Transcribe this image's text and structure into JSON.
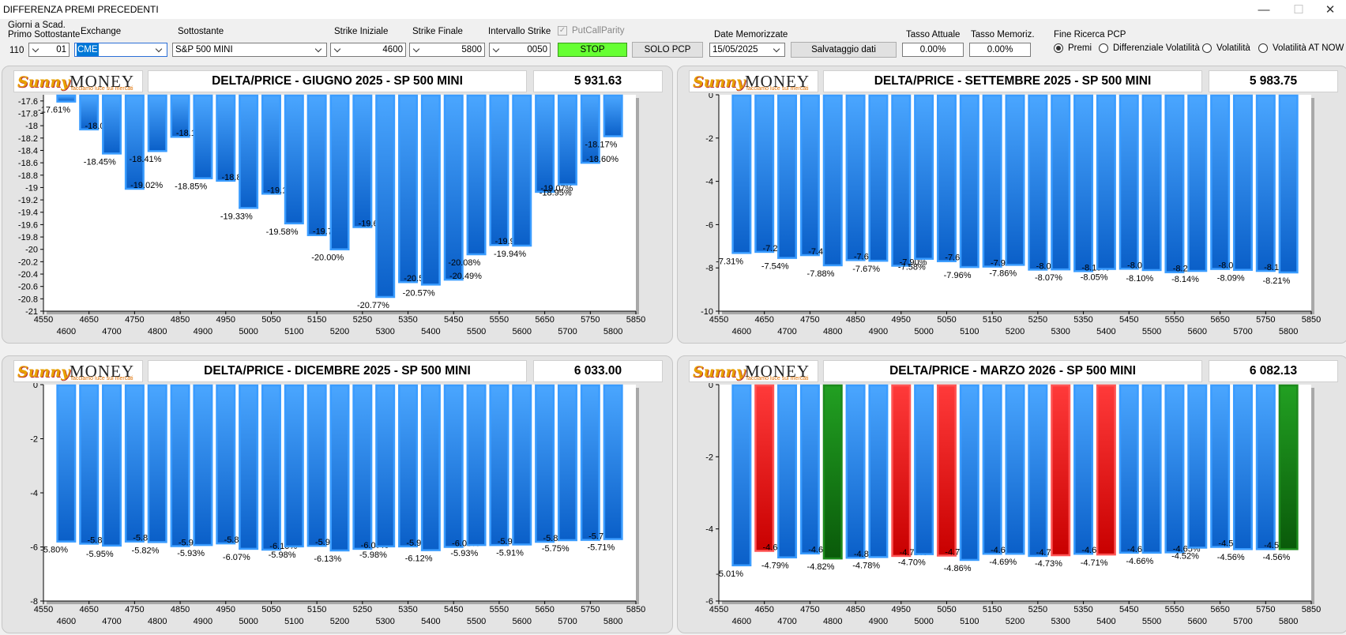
{
  "window": {
    "title": "DIFFERENZA PREMI PRECEDENTI"
  },
  "toolbar": {
    "giorni_label_1": "Giorni a Scad.",
    "giorni_label_2": "Primo Sottostante",
    "giorni_value": "110",
    "giorni_select": "01",
    "exchange_label": "Exchange",
    "exchange_value": "CME",
    "sottostante_label": "Sottostante",
    "sottostante_value": "S&P 500 MINI",
    "strike_iniziale_label": "Strike Iniziale",
    "strike_iniziale_value": "4600",
    "strike_finale_label": "Strike Finale",
    "strike_finale_value": "5800",
    "intervallo_label": "Intervallo Strike",
    "intervallo_value": "0050",
    "putcallparity_label": "PutCallParity",
    "stop_label": "STOP",
    "solo_pcp_label": "SOLO PCP",
    "date_label": "Date Memorizzate",
    "date_value": "15/05/2025",
    "salvataggio_label": "Salvataggio dati",
    "tasso_attuale_label": "Tasso Attuale",
    "tasso_attuale_value": "0.00%",
    "tasso_memoriz_label": "Tasso Memoriz.",
    "tasso_memoriz_value": "0.00%",
    "fine_ricerca_label": "Fine Ricerca PCP",
    "radios": [
      "Premi",
      "Differenziale Volatilità",
      "Volatilità",
      "Volatilità AT NOW"
    ]
  },
  "logo": {
    "word1": "Sunny",
    "word2": "MONEY",
    "tagline": "facciamo luce sui mercati"
  },
  "colors": {
    "blue_bar": "#2b8ff5",
    "red_bar": "#ff1a1a",
    "green_bar": "#138a13",
    "accent_stop": "#66ff33"
  },
  "panels": [
    {
      "title": "DELTA/PRICE - GIUGNO 2025 - SP 500 MINI",
      "price": "5 931.63"
    },
    {
      "title": "DELTA/PRICE - SETTEMBRE 2025 - SP 500 MINI",
      "price": "5 983.75"
    },
    {
      "title": "DELTA/PRICE - DICEMBRE 2025 - SP 500 MINI",
      "price": "6 033.00"
    },
    {
      "title": "DELTA/PRICE - MARZO 2026 - SP 500 MINI",
      "price": "6 082.13"
    }
  ],
  "chart_data": [
    {
      "type": "bar",
      "categories": [
        "4600",
        "4650",
        "4700",
        "4750",
        "4800",
        "4850",
        "4900",
        "4950",
        "5000",
        "5050",
        "5100",
        "5150",
        "5200",
        "5250",
        "5300",
        "5350",
        "5400",
        "5450",
        "5500",
        "5550",
        "5600",
        "5650",
        "5700",
        "5750",
        "5800"
      ],
      "values": [
        -17.61,
        -18.06,
        -18.45,
        -19.02,
        -18.41,
        -18.18,
        -18.85,
        -18.89,
        -19.33,
        -19.1,
        -19.58,
        -19.77,
        -20.0,
        -19.64,
        -20.77,
        -20.53,
        -20.57,
        -20.49,
        -20.08,
        -19.93,
        -19.94,
        -19.07,
        -18.95,
        -18.6,
        -18.17
      ],
      "labels": [
        "-17.61%",
        "-18.06%",
        "-18.45%",
        "-19.02%",
        "-18.41%",
        "-18.18%",
        "-18.85%",
        "-18.89%",
        "-19.33%",
        "-19.10%",
        "-19.58%",
        "-19.77%",
        "-20.00%",
        "-19.64%",
        "-20.77%",
        "-20.53%",
        "-20.57%",
        "-20.49%",
        "-20.08%",
        "-19.93%",
        "-19.94%",
        "-19.07%",
        "-18.95%",
        "-18.60%",
        "-18.17%"
      ],
      "colors": [
        "b",
        "b",
        "b",
        "b",
        "b",
        "b",
        "b",
        "b",
        "b",
        "b",
        "b",
        "b",
        "b",
        "b",
        "b",
        "b",
        "b",
        "b",
        "b",
        "b",
        "b",
        "b",
        "b",
        "b",
        "b"
      ],
      "ylim": [
        -21,
        -17.5
      ],
      "yticks": [
        "-17.6",
        "-17.8",
        "-18",
        "-18.2",
        "-18.4",
        "-18.6",
        "-18.8",
        "-19",
        "-19.2",
        "-19.4",
        "-19.6",
        "-19.8",
        "-20",
        "-20.2",
        "-20.4",
        "-20.6",
        "-20.8",
        "-21"
      ],
      "xticks_top": [
        "4550",
        "4650",
        "4750",
        "4850",
        "4950",
        "5050",
        "5150",
        "5250",
        "5350",
        "5450",
        "5550",
        "5650",
        "5750",
        "5850"
      ],
      "xticks_bottom": [
        "4600",
        "4700",
        "4800",
        "4900",
        "5000",
        "5100",
        "5200",
        "5300",
        "5400",
        "5500",
        "5600",
        "5700",
        "5800"
      ]
    },
    {
      "type": "bar",
      "categories": [
        "4600",
        "4650",
        "4700",
        "4750",
        "4800",
        "4850",
        "4900",
        "4950",
        "5000",
        "5050",
        "5100",
        "5150",
        "5200",
        "5250",
        "5300",
        "5350",
        "5400",
        "5450",
        "5500",
        "5550",
        "5600",
        "5650",
        "5700",
        "5750",
        "5800"
      ],
      "values": [
        -7.31,
        -7.26,
        -7.54,
        -7.41,
        -7.88,
        -7.64,
        -7.67,
        -7.9,
        -7.58,
        -7.69,
        -7.96,
        -7.94,
        -7.86,
        -8.08,
        -8.07,
        -8.15,
        -8.05,
        -8.04,
        -8.1,
        -8.2,
        -8.14,
        -8.05,
        -8.09,
        -8.14,
        -8.21
      ],
      "labels": [
        "-7.31%",
        "-7.26%",
        "-7.54%",
        "-7.41%",
        "-7.88%",
        "-7.64%",
        "-7.67%",
        "-7.90%",
        "-7.58%",
        "-7.69%",
        "-7.96%",
        "-7.94%",
        "-7.86%",
        "-8.08%",
        "-8.07%",
        "-8.15%",
        "-8.05%",
        "-8.04%",
        "-8.10%",
        "-8.20%",
        "-8.14%",
        "-8.05%",
        "-8.09%",
        "-8.14%",
        "-8.21%"
      ],
      "colors": [
        "b",
        "b",
        "b",
        "b",
        "b",
        "b",
        "b",
        "b",
        "b",
        "b",
        "b",
        "b",
        "b",
        "b",
        "b",
        "b",
        "b",
        "b",
        "b",
        "b",
        "b",
        "b",
        "b",
        "b",
        "b"
      ],
      "ylim": [
        -10,
        0
      ],
      "yticks": [
        "0",
        "-2",
        "-4",
        "-6",
        "-8",
        "-10"
      ],
      "xticks_top": [
        "4550",
        "4650",
        "4750",
        "4850",
        "4950",
        "5050",
        "5150",
        "5250",
        "5350",
        "5450",
        "5550",
        "5650",
        "5750",
        "5850"
      ],
      "xticks_bottom": [
        "4600",
        "4700",
        "4800",
        "4900",
        "5000",
        "5100",
        "5200",
        "5300",
        "5400",
        "5500",
        "5600",
        "5700",
        "5800"
      ]
    },
    {
      "type": "bar",
      "categories": [
        "4600",
        "4650",
        "4700",
        "4750",
        "4800",
        "4850",
        "4900",
        "4950",
        "5000",
        "5050",
        "5100",
        "5150",
        "5200",
        "5250",
        "5300",
        "5350",
        "5400",
        "5450",
        "5500",
        "5550",
        "5600",
        "5650",
        "5700",
        "5750",
        "5800"
      ],
      "values": [
        -5.8,
        -5.88,
        -5.95,
        -5.8,
        -5.82,
        -5.97,
        -5.93,
        -5.87,
        -6.07,
        -6.1,
        -5.98,
        -5.96,
        -6.13,
        -6.07,
        -5.98,
        -5.98,
        -6.12,
        -6.0,
        -5.93,
        -5.93,
        -5.91,
        -5.81,
        -5.75,
        -5.74,
        -5.71
      ],
      "labels": [
        "-5.80%",
        "-5.88%",
        "-5.95%",
        "-5.80%",
        "-5.82%",
        "-5.97%",
        "-5.93%",
        "-5.87%",
        "-6.07%",
        "-6.10%",
        "-5.98%",
        "-5.96%",
        "-6.13%",
        "-6.07%",
        "-5.98%",
        "-5.98%",
        "-6.12%",
        "-6.00%",
        "-5.93%",
        "-5.93%",
        "-5.91%",
        "-5.81%",
        "-5.75%",
        "-5.74%",
        "-5.71%"
      ],
      "colors": [
        "b",
        "b",
        "b",
        "b",
        "b",
        "b",
        "b",
        "b",
        "b",
        "b",
        "b",
        "b",
        "b",
        "b",
        "b",
        "b",
        "b",
        "b",
        "b",
        "b",
        "b",
        "b",
        "b",
        "b",
        "b"
      ],
      "ylim": [
        -8,
        0
      ],
      "yticks": [
        "0",
        "-2",
        "-4",
        "-6",
        "-8"
      ],
      "xticks_top": [
        "4550",
        "4650",
        "4750",
        "4850",
        "4950",
        "5050",
        "5150",
        "5250",
        "5350",
        "5450",
        "5550",
        "5650",
        "5750",
        "5850"
      ],
      "xticks_bottom": [
        "4600",
        "4700",
        "4800",
        "4900",
        "5000",
        "5100",
        "5200",
        "5300",
        "5400",
        "5500",
        "5600",
        "5700",
        "5800"
      ]
    },
    {
      "type": "bar",
      "categories": [
        "4600",
        "4650",
        "4700",
        "4750",
        "4800",
        "4850",
        "4900",
        "4950",
        "5000",
        "5050",
        "5100",
        "5150",
        "5200",
        "5250",
        "5300",
        "5350",
        "5400",
        "5450",
        "5500",
        "5550",
        "5600",
        "5650",
        "5700",
        "5750",
        "5800"
      ],
      "values": [
        -5.01,
        -4.61,
        -4.79,
        -4.68,
        -4.82,
        -4.8,
        -4.78,
        -4.75,
        -4.7,
        -4.74,
        -4.86,
        -4.69,
        -4.69,
        -4.75,
        -4.73,
        -4.69,
        -4.71,
        -4.66,
        -4.66,
        -4.65,
        -4.52,
        -4.5,
        -4.56,
        -4.56,
        -4.56
      ],
      "labels": [
        "-5.01%",
        "-4.61%",
        "-4.79%",
        "-4.68%",
        "-4.82%",
        "-4.80%",
        "-4.78%",
        "-4.75%",
        "-4.70%",
        "-4.74%",
        "-4.86%",
        "-4.69%",
        "-4.69%",
        "-4.75%",
        "-4.73%",
        "-4.69%",
        "-4.71%",
        "-4.66%",
        "-4.66%",
        "-4.65%",
        "-4.52%",
        "-4.50%",
        "-4.56%",
        "-4.56%",
        "-4.56%"
      ],
      "colors": [
        "b",
        "r",
        "b",
        "b",
        "g",
        "b",
        "b",
        "r",
        "b",
        "r",
        "b",
        "b",
        "b",
        "b",
        "r",
        "b",
        "r",
        "b",
        "b",
        "b",
        "b",
        "b",
        "b",
        "b",
        "g"
      ],
      "ylim": [
        -6,
        0
      ],
      "yticks": [
        "0",
        "-2",
        "-4",
        "-6"
      ],
      "xticks_top": [
        "4550",
        "4650",
        "4750",
        "4850",
        "4950",
        "5050",
        "5150",
        "5250",
        "5350",
        "5450",
        "5550",
        "5650",
        "5750",
        "5850"
      ],
      "xticks_bottom": [
        "4600",
        "4700",
        "4800",
        "4900",
        "5000",
        "5100",
        "5200",
        "5300",
        "5400",
        "5500",
        "5600",
        "5700",
        "5800"
      ]
    }
  ]
}
